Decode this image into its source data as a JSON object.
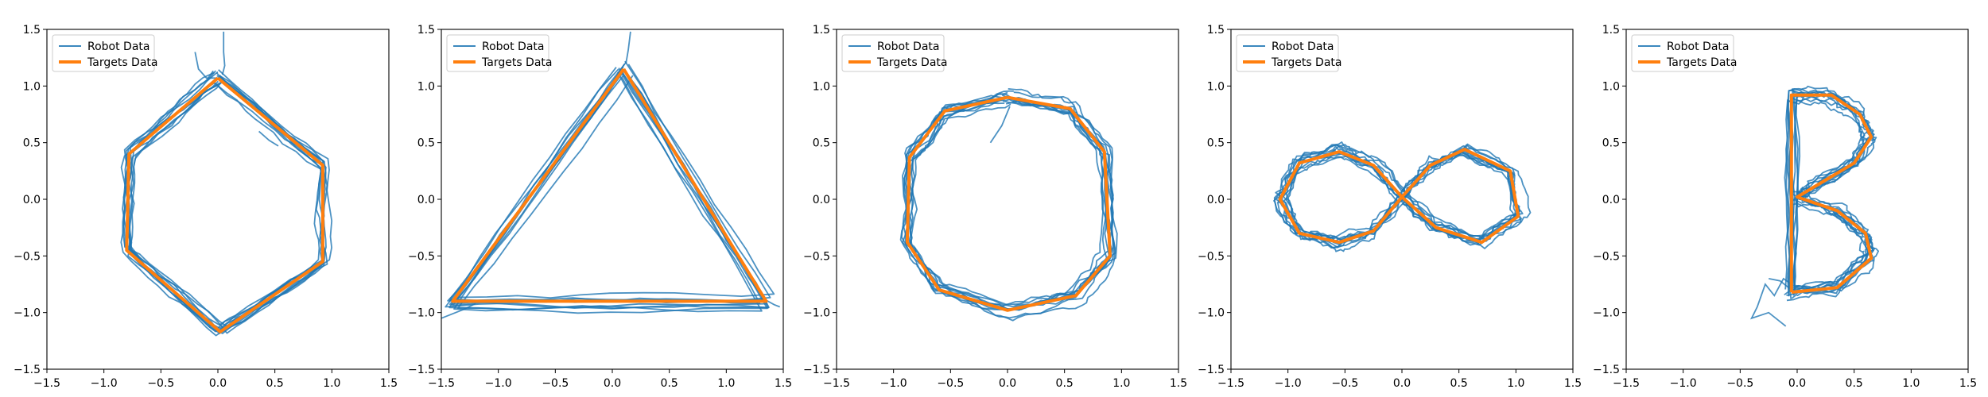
{
  "colors": {
    "robot": "#1f77b4",
    "target": "#ff7f0e"
  },
  "chart_data": [
    {
      "type": "line",
      "title": "",
      "xlabel": "",
      "ylabel": "",
      "xlim": [
        -1.5,
        1.5
      ],
      "ylim": [
        -1.5,
        1.5
      ],
      "xticks": [
        "-1.5",
        "-1.0",
        "-0.5",
        "0.0",
        "0.5",
        "1.0",
        "1.5"
      ],
      "yticks": [
        "-1.5",
        "-1.0",
        "-0.5",
        "0.0",
        "0.5",
        "1.0",
        "1.5"
      ],
      "grid": false,
      "legend_position": "top-left",
      "legend": [
        "Robot Data",
        "Targets Data"
      ],
      "target_path": [
        [
          0.0,
          1.07
        ],
        [
          0.92,
          0.3
        ],
        [
          0.92,
          -0.55
        ],
        [
          0.02,
          -1.17
        ],
        [
          -0.8,
          -0.45
        ],
        [
          -0.78,
          0.4
        ],
        [
          0.0,
          1.07
        ]
      ],
      "robot_extra": [
        [
          [
            0.05,
            1.48
          ],
          [
            0.05,
            1.3
          ],
          [
            0.06,
            1.18
          ],
          [
            0.04,
            1.1
          ]
        ],
        [
          [
            -0.2,
            1.3
          ],
          [
            -0.17,
            1.15
          ],
          [
            -0.1,
            1.07
          ],
          [
            0.02,
            1.07
          ]
        ],
        [
          [
            0.36,
            0.6
          ],
          [
            0.45,
            0.52
          ],
          [
            0.53,
            0.47
          ]
        ]
      ]
    },
    {
      "type": "line",
      "title": "",
      "xlabel": "",
      "ylabel": "",
      "xlim": [
        -1.5,
        1.5
      ],
      "ylim": [
        -1.5,
        1.5
      ],
      "xticks": [
        "-1.5",
        "-1.0",
        "-0.5",
        "0.0",
        "0.5",
        "1.0",
        "1.5"
      ],
      "yticks": [
        "-1.5",
        "-1.0",
        "-0.5",
        "0.0",
        "0.5",
        "1.0",
        "1.5"
      ],
      "grid": false,
      "legend_position": "top-left",
      "legend": [
        "Robot Data",
        "Targets Data"
      ],
      "target_path": [
        [
          0.1,
          1.15
        ],
        [
          1.35,
          -0.9
        ],
        [
          -1.4,
          -0.9
        ],
        [
          0.1,
          1.15
        ]
      ],
      "robot_extra": [
        [
          [
            0.12,
            1.2
          ],
          [
            0.14,
            1.32
          ],
          [
            0.16,
            1.48
          ]
        ],
        [
          [
            -1.5,
            -1.05
          ],
          [
            -1.3,
            -0.97
          ],
          [
            -1.2,
            -0.92
          ]
        ],
        [
          [
            1.33,
            -0.88
          ],
          [
            1.42,
            -0.93
          ],
          [
            1.47,
            -0.95
          ]
        ]
      ]
    },
    {
      "type": "line",
      "title": "",
      "xlabel": "",
      "ylabel": "",
      "xlim": [
        -1.5,
        1.5
      ],
      "ylim": [
        -1.5,
        1.5
      ],
      "xticks": [
        "-1.5",
        "-1.0",
        "-0.5",
        "0.0",
        "0.5",
        "1.0",
        "1.5"
      ],
      "yticks": [
        "-1.5",
        "-1.0",
        "-0.5",
        "0.0",
        "0.5",
        "1.0",
        "1.5"
      ],
      "grid": false,
      "legend_position": "top-left",
      "legend": [
        "Robot Data",
        "Targets Data"
      ],
      "target_path": [
        [
          0.0,
          0.9
        ],
        [
          0.55,
          0.8
        ],
        [
          0.85,
          0.42
        ],
        [
          0.9,
          -0.5
        ],
        [
          0.6,
          -0.85
        ],
        [
          0.0,
          -0.98
        ],
        [
          -0.6,
          -0.8
        ],
        [
          -0.88,
          -0.38
        ],
        [
          -0.86,
          0.37
        ],
        [
          -0.55,
          0.78
        ],
        [
          0.0,
          0.9
        ]
      ],
      "robot_extra": [
        [
          [
            -0.15,
            0.5
          ],
          [
            -0.05,
            0.65
          ],
          [
            0.02,
            0.82
          ]
        ]
      ]
    },
    {
      "type": "line",
      "title": "",
      "xlabel": "",
      "ylabel": "",
      "xlim": [
        -1.5,
        1.5
      ],
      "ylim": [
        -1.5,
        1.5
      ],
      "xticks": [
        "-1.5",
        "-1.0",
        "-0.5",
        "0.0",
        "0.5",
        "1.0",
        "1.5"
      ],
      "yticks": [
        "-1.5",
        "-1.0",
        "-0.5",
        "0.0",
        "0.5",
        "1.0",
        "1.5"
      ],
      "grid": false,
      "legend_position": "top-left",
      "legend": [
        "Robot Data",
        "Targets Data"
      ],
      "target_path": [
        [
          0.0,
          0.02
        ],
        [
          -0.25,
          0.3
        ],
        [
          -0.55,
          0.42
        ],
        [
          -0.9,
          0.32
        ],
        [
          -1.07,
          0.0
        ],
        [
          -0.9,
          -0.3
        ],
        [
          -0.55,
          -0.38
        ],
        [
          -0.25,
          -0.28
        ],
        [
          0.0,
          0.02
        ],
        [
          0.25,
          0.3
        ],
        [
          0.55,
          0.44
        ],
        [
          0.95,
          0.25
        ],
        [
          1.02,
          -0.15
        ],
        [
          0.7,
          -0.38
        ],
        [
          0.3,
          -0.25
        ],
        [
          0.0,
          0.02
        ]
      ],
      "robot_extra": []
    },
    {
      "type": "line",
      "title": "",
      "xlabel": "",
      "ylabel": "",
      "xlim": [
        -1.5,
        1.5
      ],
      "ylim": [
        -1.5,
        1.5
      ],
      "xticks": [
        "-1.5",
        "-1.0",
        "-0.5",
        "0.0",
        "0.5",
        "1.0",
        "1.5"
      ],
      "yticks": [
        "-1.5",
        "-1.0",
        "-0.5",
        "0.0",
        "0.5",
        "1.0",
        "1.5"
      ],
      "grid": false,
      "legend_position": "top-left",
      "legend": [
        "Robot Data",
        "Targets Data"
      ],
      "target_path": [
        [
          -0.05,
          -0.82
        ],
        [
          -0.05,
          0.92
        ],
        [
          0.3,
          0.92
        ],
        [
          0.55,
          0.75
        ],
        [
          0.65,
          0.55
        ],
        [
          0.5,
          0.32
        ],
        [
          0.1,
          0.08
        ],
        [
          0.0,
          0.02
        ],
        [
          0.35,
          -0.1
        ],
        [
          0.6,
          -0.3
        ],
        [
          0.65,
          -0.52
        ],
        [
          0.35,
          -0.78
        ],
        [
          -0.05,
          -0.82
        ]
      ],
      "robot_extra": [
        [
          [
            -0.05,
            -0.75
          ],
          [
            -0.12,
            -0.7
          ],
          [
            -0.2,
            -0.85
          ],
          [
            -0.28,
            -0.75
          ],
          [
            -0.35,
            -0.95
          ],
          [
            -0.4,
            -1.05
          ],
          [
            -0.25,
            -1.0
          ],
          [
            -0.1,
            -1.12
          ]
        ],
        [
          [
            -0.05,
            -0.8
          ],
          [
            -0.15,
            -0.72
          ],
          [
            -0.25,
            -0.7
          ]
        ]
      ]
    }
  ]
}
